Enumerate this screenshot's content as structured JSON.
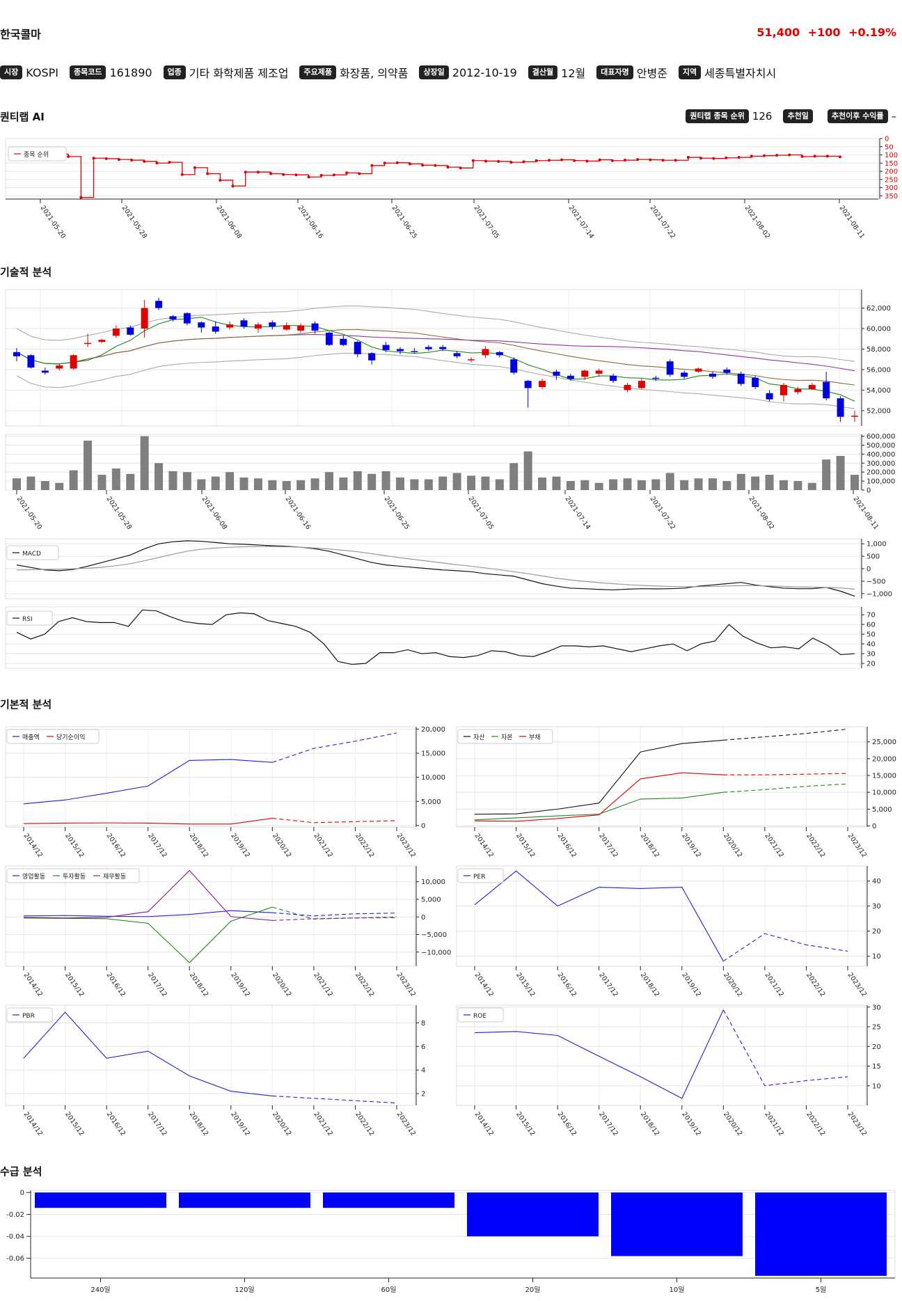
{
  "header": {
    "company": "한국콜마",
    "price": "51,400",
    "change": "+100",
    "change_pct": "+0.19%",
    "price_color": "#e00000"
  },
  "info": [
    {
      "label": "시장",
      "value": "KOSPI"
    },
    {
      "label": "종목코드",
      "value": "161890"
    },
    {
      "label": "업종",
      "value": "기타 화학제품 제조업"
    },
    {
      "label": "주요제품",
      "value": "화장품, 의약품"
    },
    {
      "label": "상장일",
      "value": "2012-10-19"
    },
    {
      "label": "결산월",
      "value": "12월"
    },
    {
      "label": "대표자명",
      "value": "안병준"
    },
    {
      "label": "지역",
      "value": "세종특별자치시"
    }
  ],
  "sections": {
    "ai": "퀀티랩 AI",
    "technical": "기술적 분석",
    "fundamental": "기본적 분석",
    "supply": "수급 분석"
  },
  "ai": {
    "rank_label": "퀀티랩 종목 순위",
    "rank_value": "126",
    "rec_date_label": "추천일",
    "rec_date_value": "",
    "return_label": "추천이후 수익률",
    "return_value": "–"
  },
  "colors": {
    "up": "#e00000",
    "down": "#0000e0",
    "rank_line": "#e00000"
  },
  "chart_data": [
    {
      "id": "rank",
      "type": "line",
      "legend": [
        "종목 순위"
      ],
      "x_ticks": [
        "2021-05-20",
        "2021-05-28",
        "2021-06-08",
        "2021-06-16",
        "2021-06-25",
        "2021-07-05",
        "2021-07-14",
        "2021-07-22",
        "2021-08-02",
        "2021-08-11"
      ],
      "y_ticks": [
        0,
        50,
        100,
        150,
        200,
        250,
        300,
        350
      ],
      "ylim": [
        0,
        370
      ],
      "y_inverted": true,
      "values": [
        95,
        110,
        360,
        120,
        123,
        128,
        132,
        140,
        150,
        145,
        220,
        178,
        215,
        255,
        290,
        205,
        205,
        215,
        220,
        222,
        235,
        225,
        222,
        210,
        215,
        165,
        150,
        148,
        155,
        163,
        165,
        175,
        180,
        135,
        138,
        140,
        145,
        142,
        135,
        133,
        130,
        135,
        138,
        130,
        135,
        132,
        128,
        130,
        133,
        133,
        115,
        120,
        122,
        118,
        115,
        108,
        105,
        102,
        100,
        110,
        108,
        108,
        112
      ]
    },
    {
      "id": "candles",
      "type": "candlestick",
      "y_ticks": [
        52000,
        54000,
        56000,
        58000,
        60000,
        62000
      ],
      "ylim": [
        50500,
        63800
      ],
      "candles": [
        [
          57300,
          57700,
          56800,
          58100,
          "d"
        ],
        [
          57400,
          56200,
          56100,
          57500,
          "d"
        ],
        [
          55700,
          55900,
          55500,
          56200,
          "d"
        ],
        [
          56100,
          56400,
          55900,
          56600,
          "u"
        ],
        [
          56100,
          57400,
          56000,
          57500,
          "u"
        ],
        [
          58500,
          58600,
          58200,
          59500,
          "u"
        ],
        [
          58700,
          58900,
          58600,
          59000,
          "u"
        ],
        [
          59300,
          60000,
          59100,
          60300,
          "u"
        ],
        [
          60100,
          59400,
          59300,
          60300,
          "d"
        ],
        [
          60000,
          62000,
          59100,
          62800,
          "u"
        ],
        [
          62700,
          62000,
          61800,
          63000,
          "d"
        ],
        [
          61200,
          60900,
          60700,
          61300,
          "d"
        ],
        [
          61500,
          60500,
          60300,
          61600,
          "d"
        ],
        [
          60600,
          60100,
          59600,
          60700,
          "d"
        ],
        [
          60200,
          59700,
          59500,
          60700,
          "d"
        ],
        [
          60100,
          60400,
          59900,
          60700,
          "u"
        ],
        [
          60800,
          60200,
          60000,
          61000,
          "d"
        ],
        [
          60000,
          60400,
          59600,
          60600,
          "u"
        ],
        [
          60600,
          60200,
          59900,
          60800,
          "d"
        ],
        [
          59900,
          60300,
          59800,
          60600,
          "u"
        ],
        [
          59800,
          60300,
          59600,
          60500,
          "u"
        ],
        [
          60500,
          59800,
          59500,
          60700,
          "d"
        ],
        [
          59600,
          58400,
          58300,
          59700,
          "d"
        ],
        [
          59000,
          58400,
          58300,
          59300,
          "d"
        ],
        [
          58700,
          57500,
          57200,
          58800,
          "d"
        ],
        [
          57600,
          56900,
          56500,
          57700,
          "d"
        ],
        [
          58400,
          57900,
          57700,
          58700,
          "d"
        ],
        [
          58000,
          57800,
          57500,
          58200,
          "d"
        ],
        [
          57800,
          57800,
          57600,
          58100,
          "d"
        ],
        [
          58200,
          58000,
          57800,
          58400,
          "d"
        ],
        [
          58200,
          58000,
          57800,
          58400,
          "d"
        ],
        [
          57600,
          57300,
          57100,
          57800,
          "d"
        ],
        [
          56900,
          57000,
          56700,
          57200,
          "u"
        ],
        [
          57400,
          58000,
          57100,
          58300,
          "u"
        ],
        [
          57700,
          57400,
          57200,
          57800,
          "d"
        ],
        [
          57000,
          55700,
          55500,
          57200,
          "d"
        ],
        [
          54900,
          54200,
          52300,
          55000,
          "d"
        ],
        [
          54300,
          54900,
          54100,
          55100,
          "u"
        ],
        [
          55800,
          55400,
          55000,
          56000,
          "d"
        ],
        [
          55400,
          55100,
          54900,
          55600,
          "d"
        ],
        [
          55300,
          55900,
          55000,
          56000,
          "u"
        ],
        [
          55900,
          55600,
          55300,
          56100,
          "u"
        ],
        [
          55400,
          54900,
          54700,
          55600,
          "d"
        ],
        [
          54000,
          54500,
          53800,
          54700,
          "u"
        ],
        [
          54200,
          54900,
          54100,
          55100,
          "u"
        ],
        [
          55200,
          55100,
          54900,
          55400,
          "d"
        ],
        [
          56800,
          55500,
          55300,
          57000,
          "d"
        ],
        [
          55700,
          55300,
          55100,
          55900,
          "d"
        ],
        [
          55800,
          56100,
          55700,
          56200,
          "u"
        ],
        [
          55600,
          55300,
          55100,
          55800,
          "d"
        ],
        [
          56000,
          55700,
          55500,
          56200,
          "d"
        ],
        [
          55600,
          54600,
          54400,
          55800,
          "d"
        ],
        [
          55200,
          54300,
          54100,
          55400,
          "d"
        ],
        [
          53700,
          53100,
          52900,
          54000,
          "d"
        ],
        [
          53500,
          54500,
          52900,
          54700,
          "u"
        ],
        [
          53800,
          54100,
          53600,
          54300,
          "u"
        ],
        [
          54100,
          54500,
          54000,
          54700,
          "u"
        ],
        [
          54800,
          53200,
          53000,
          55800,
          "d"
        ],
        [
          53200,
          51400,
          50900,
          53400,
          "d"
        ],
        [
          51500,
          51400,
          50900,
          52000,
          "u"
        ]
      ]
    },
    {
      "id": "volume",
      "type": "bar",
      "y_ticks": [
        0,
        100000,
        200000,
        300000,
        400000,
        500000,
        600000
      ],
      "ylim": [
        0,
        620000
      ],
      "values": [
        130000,
        150000,
        100000,
        80000,
        220000,
        550000,
        170000,
        240000,
        180000,
        600000,
        300000,
        210000,
        200000,
        120000,
        150000,
        200000,
        140000,
        130000,
        110000,
        100000,
        110000,
        130000,
        200000,
        140000,
        210000,
        180000,
        210000,
        140000,
        120000,
        120000,
        150000,
        190000,
        160000,
        150000,
        120000,
        300000,
        430000,
        140000,
        150000,
        100000,
        110000,
        80000,
        120000,
        130000,
        110000,
        120000,
        190000,
        110000,
        130000,
        130000,
        100000,
        180000,
        150000,
        170000,
        110000,
        100000,
        80000,
        340000,
        380000,
        170000
      ]
    },
    {
      "id": "macd",
      "type": "line",
      "legend": [
        "MACD"
      ],
      "y_ticks": [
        -1000,
        -500,
        0,
        500,
        1000
      ],
      "ylim": [
        -1200,
        1200
      ],
      "series": [
        {
          "name": "MACD",
          "values": [
            150,
            50,
            -50,
            -80,
            -30,
            100,
            250,
            400,
            550,
            800,
            1000,
            1080,
            1120,
            1100,
            1050,
            1000,
            980,
            950,
            920,
            900,
            860,
            800,
            700,
            550,
            400,
            250,
            150,
            100,
            50,
            0,
            -50,
            -80,
            -120,
            -200,
            -250,
            -300,
            -450,
            -600,
            -700,
            -780,
            -800,
            -830,
            -850,
            -820,
            -800,
            -810,
            -800,
            -780,
            -700,
            -650,
            -600,
            -550,
            -650,
            -720,
            -780,
            -800,
            -800,
            -750,
            -900,
            -1100
          ]
        },
        {
          "name": "signal",
          "values": [
            -50,
            -40,
            -30,
            -20,
            0,
            20,
            60,
            120,
            200,
            320,
            450,
            580,
            700,
            780,
            830,
            860,
            880,
            890,
            890,
            880,
            860,
            830,
            790,
            740,
            680,
            600,
            520,
            440,
            370,
            300,
            230,
            160,
            100,
            30,
            -40,
            -120,
            -200,
            -290,
            -380,
            -450,
            -510,
            -560,
            -600,
            -640,
            -670,
            -690,
            -710,
            -720,
            -720,
            -710,
            -690,
            -680,
            -680,
            -690,
            -710,
            -730,
            -740,
            -750,
            -770,
            -820
          ]
        }
      ]
    },
    {
      "id": "rsi",
      "type": "line",
      "legend": [
        "RSI"
      ],
      "y_ticks": [
        20,
        30,
        40,
        50,
        60,
        70
      ],
      "ylim": [
        15,
        78
      ],
      "values": [
        52,
        45,
        50,
        63,
        67,
        63,
        62,
        62,
        58,
        75,
        74,
        68,
        63,
        61,
        60,
        70,
        72,
        71,
        64,
        61,
        58,
        52,
        40,
        22,
        19,
        20,
        31,
        31,
        34,
        30,
        31,
        27,
        26,
        28,
        33,
        32,
        28,
        27,
        32,
        38,
        38,
        37,
        38,
        35,
        32,
        35,
        38,
        40,
        33,
        40,
        43,
        60,
        48,
        41,
        36,
        37,
        35,
        46,
        39,
        29,
        30
      ]
    },
    {
      "id": "sales",
      "type": "line",
      "legend": [
        "매출액",
        "당기순이익"
      ],
      "categories": [
        "2014/12",
        "2015/12",
        "2016/12",
        "2017/12",
        "2018/12",
        "2019/12",
        "2020/12",
        "2021/12",
        "2022/12",
        "2023/12"
      ],
      "y_ticks": [
        0,
        5000,
        10000,
        15000,
        20000
      ],
      "ylim": [
        -300,
        20500
      ],
      "series": [
        {
          "name": "매출액",
          "values": [
            4500,
            5300,
            6700,
            8200,
            13500,
            13700,
            13100,
            16000,
            17500,
            19200
          ]
        },
        {
          "name": "당기순이익",
          "values": [
            400,
            500,
            550,
            500,
            300,
            300,
            1500,
            600,
            800,
            1000
          ]
        }
      ]
    },
    {
      "id": "balance",
      "type": "line",
      "legend": [
        "자산",
        "자본",
        "부채"
      ],
      "categories": [
        "2014/12",
        "2015/12",
        "2016/12",
        "2017/12",
        "2018/12",
        "2019/12",
        "2020/12",
        "2021/12",
        "2022/12",
        "2023/12"
      ],
      "y_ticks": [
        0,
        5000,
        10000,
        15000,
        20000,
        25000
      ],
      "ylim": [
        -300,
        29500
      ],
      "series": [
        {
          "name": "자산",
          "values": [
            3500,
            3600,
            5000,
            6800,
            22000,
            24500,
            25500,
            26500,
            27500,
            28800
          ]
        },
        {
          "name": "자본",
          "values": [
            1800,
            2400,
            3000,
            3500,
            8000,
            8300,
            10000,
            10800,
            11800,
            12500
          ]
        },
        {
          "name": "부채",
          "values": [
            1500,
            1400,
            2200,
            3300,
            14000,
            15800,
            15200,
            15200,
            15400,
            15600
          ]
        }
      ]
    },
    {
      "id": "cashflow",
      "type": "line",
      "legend": [
        "영업활동",
        "투자활동",
        "재무활동"
      ],
      "categories": [
        "2014/12",
        "2015/12",
        "2016/12",
        "2017/12",
        "2018/12",
        "2019/12",
        "2020/12",
        "2021/12",
        "2022/12",
        "2023/12"
      ],
      "y_ticks": [
        -10000,
        -5000,
        0,
        5000,
        10000
      ],
      "ylim": [
        -14000,
        14500
      ],
      "series": [
        {
          "name": "영업활동",
          "values": [
            300,
            400,
            200,
            100,
            700,
            1800,
            1200,
            300,
            900,
            1100
          ]
        },
        {
          "name": "투자활동",
          "values": [
            -300,
            -400,
            -500,
            -1800,
            -13000,
            -1200,
            2800,
            -600,
            -300,
            0
          ]
        },
        {
          "name": "재무활동",
          "values": [
            -100,
            -300,
            -100,
            1500,
            13200,
            100,
            -1000,
            -500,
            -300,
            -200
          ]
        }
      ]
    },
    {
      "id": "per",
      "type": "line",
      "legend": [
        "PER"
      ],
      "categories": [
        "2014/12",
        "2015/12",
        "2016/12",
        "2017/12",
        "2018/12",
        "2019/12",
        "2020/12",
        "2021/12",
        "2022/12",
        "2023/12"
      ],
      "y_ticks": [
        10,
        20,
        30,
        40
      ],
      "ylim": [
        6,
        46
      ],
      "values": [
        30.5,
        44,
        30,
        37.5,
        37,
        37.5,
        8,
        19,
        14.5,
        12
      ]
    },
    {
      "id": "pbr",
      "type": "line",
      "legend": [
        "PBR"
      ],
      "categories": [
        "2014/12",
        "2015/12",
        "2016/12",
        "2017/12",
        "2018/12",
        "2019/12",
        "2020/12",
        "2021/12",
        "2022/12",
        "2023/12"
      ],
      "y_ticks": [
        2,
        4,
        6,
        8
      ],
      "ylim": [
        1,
        9.5
      ],
      "values": [
        5,
        8.9,
        5,
        5.6,
        3.5,
        2.2,
        1.8,
        1.6,
        1.4,
        1.2
      ]
    },
    {
      "id": "roe",
      "type": "line",
      "legend": [
        "ROE"
      ],
      "categories": [
        "2014/12",
        "2015/12",
        "2016/12",
        "2017/12",
        "2018/12",
        "2019/12",
        "2020/12",
        "2021/12",
        "2022/12",
        "2023/12"
      ],
      "y_ticks": [
        10,
        15,
        20,
        25,
        30
      ],
      "ylim": [
        5,
        30.5
      ],
      "values": [
        23.5,
        23.8,
        22.8,
        17.5,
        12.3,
        6.8,
        29.3,
        10,
        11.3,
        12.3
      ]
    },
    {
      "id": "supply",
      "type": "bar",
      "categories": [
        "240일",
        "120일",
        "60일",
        "20일",
        "10일",
        "5일"
      ],
      "y_ticks": [
        0,
        -0.02,
        -0.04,
        -0.06
      ],
      "ylim": [
        -0.078,
        0.002
      ],
      "values": [
        -0.014,
        -0.014,
        -0.014,
        -0.04,
        -0.058,
        -0.076
      ]
    }
  ]
}
